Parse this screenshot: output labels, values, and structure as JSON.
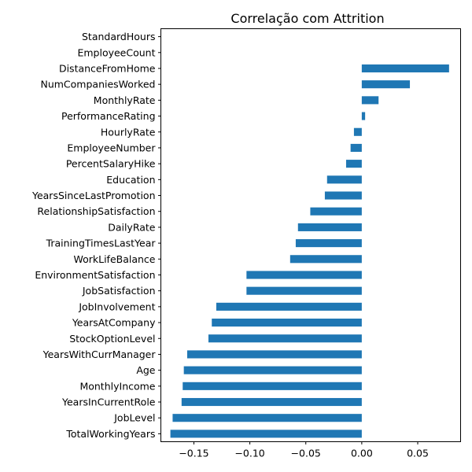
{
  "chart_data": {
    "type": "bar",
    "orientation": "horizontal",
    "title": "Correlação com Attrition",
    "xlabel": "",
    "ylabel": "",
    "xlim": [
      -0.1795,
      0.0883
    ],
    "xticks": [
      -0.15,
      -0.1,
      -0.05,
      0.0,
      0.05
    ],
    "xtick_labels": [
      "−0.15",
      "−0.10",
      "−0.05",
      "0.00",
      "0.05"
    ],
    "grid": false,
    "legend": "none",
    "bar_color": "#1f77b4",
    "categories": [
      "StandardHours",
      "EmployeeCount",
      "DistanceFromHome",
      "NumCompaniesWorked",
      "MonthlyRate",
      "PerformanceRating",
      "HourlyRate",
      "EmployeeNumber",
      "PercentSalaryHike",
      "Education",
      "YearsSinceLastPromotion",
      "RelationshipSatisfaction",
      "DailyRate",
      "TrainingTimesLastYear",
      "WorkLifeBalance",
      "EnvironmentSatisfaction",
      "JobSatisfaction",
      "JobInvolvement",
      "YearsAtCompany",
      "StockOptionLevel",
      "YearsWithCurrManager",
      "Age",
      "MonthlyIncome",
      "YearsInCurrentRole",
      "JobLevel",
      "TotalWorkingYears"
    ],
    "values": [
      0.0,
      0.0,
      0.078,
      0.043,
      0.015,
      0.003,
      -0.007,
      -0.01,
      -0.014,
      -0.031,
      -0.033,
      -0.046,
      -0.057,
      -0.059,
      -0.064,
      -0.103,
      -0.103,
      -0.13,
      -0.134,
      -0.137,
      -0.156,
      -0.159,
      -0.16,
      -0.161,
      -0.169,
      -0.171
    ]
  }
}
